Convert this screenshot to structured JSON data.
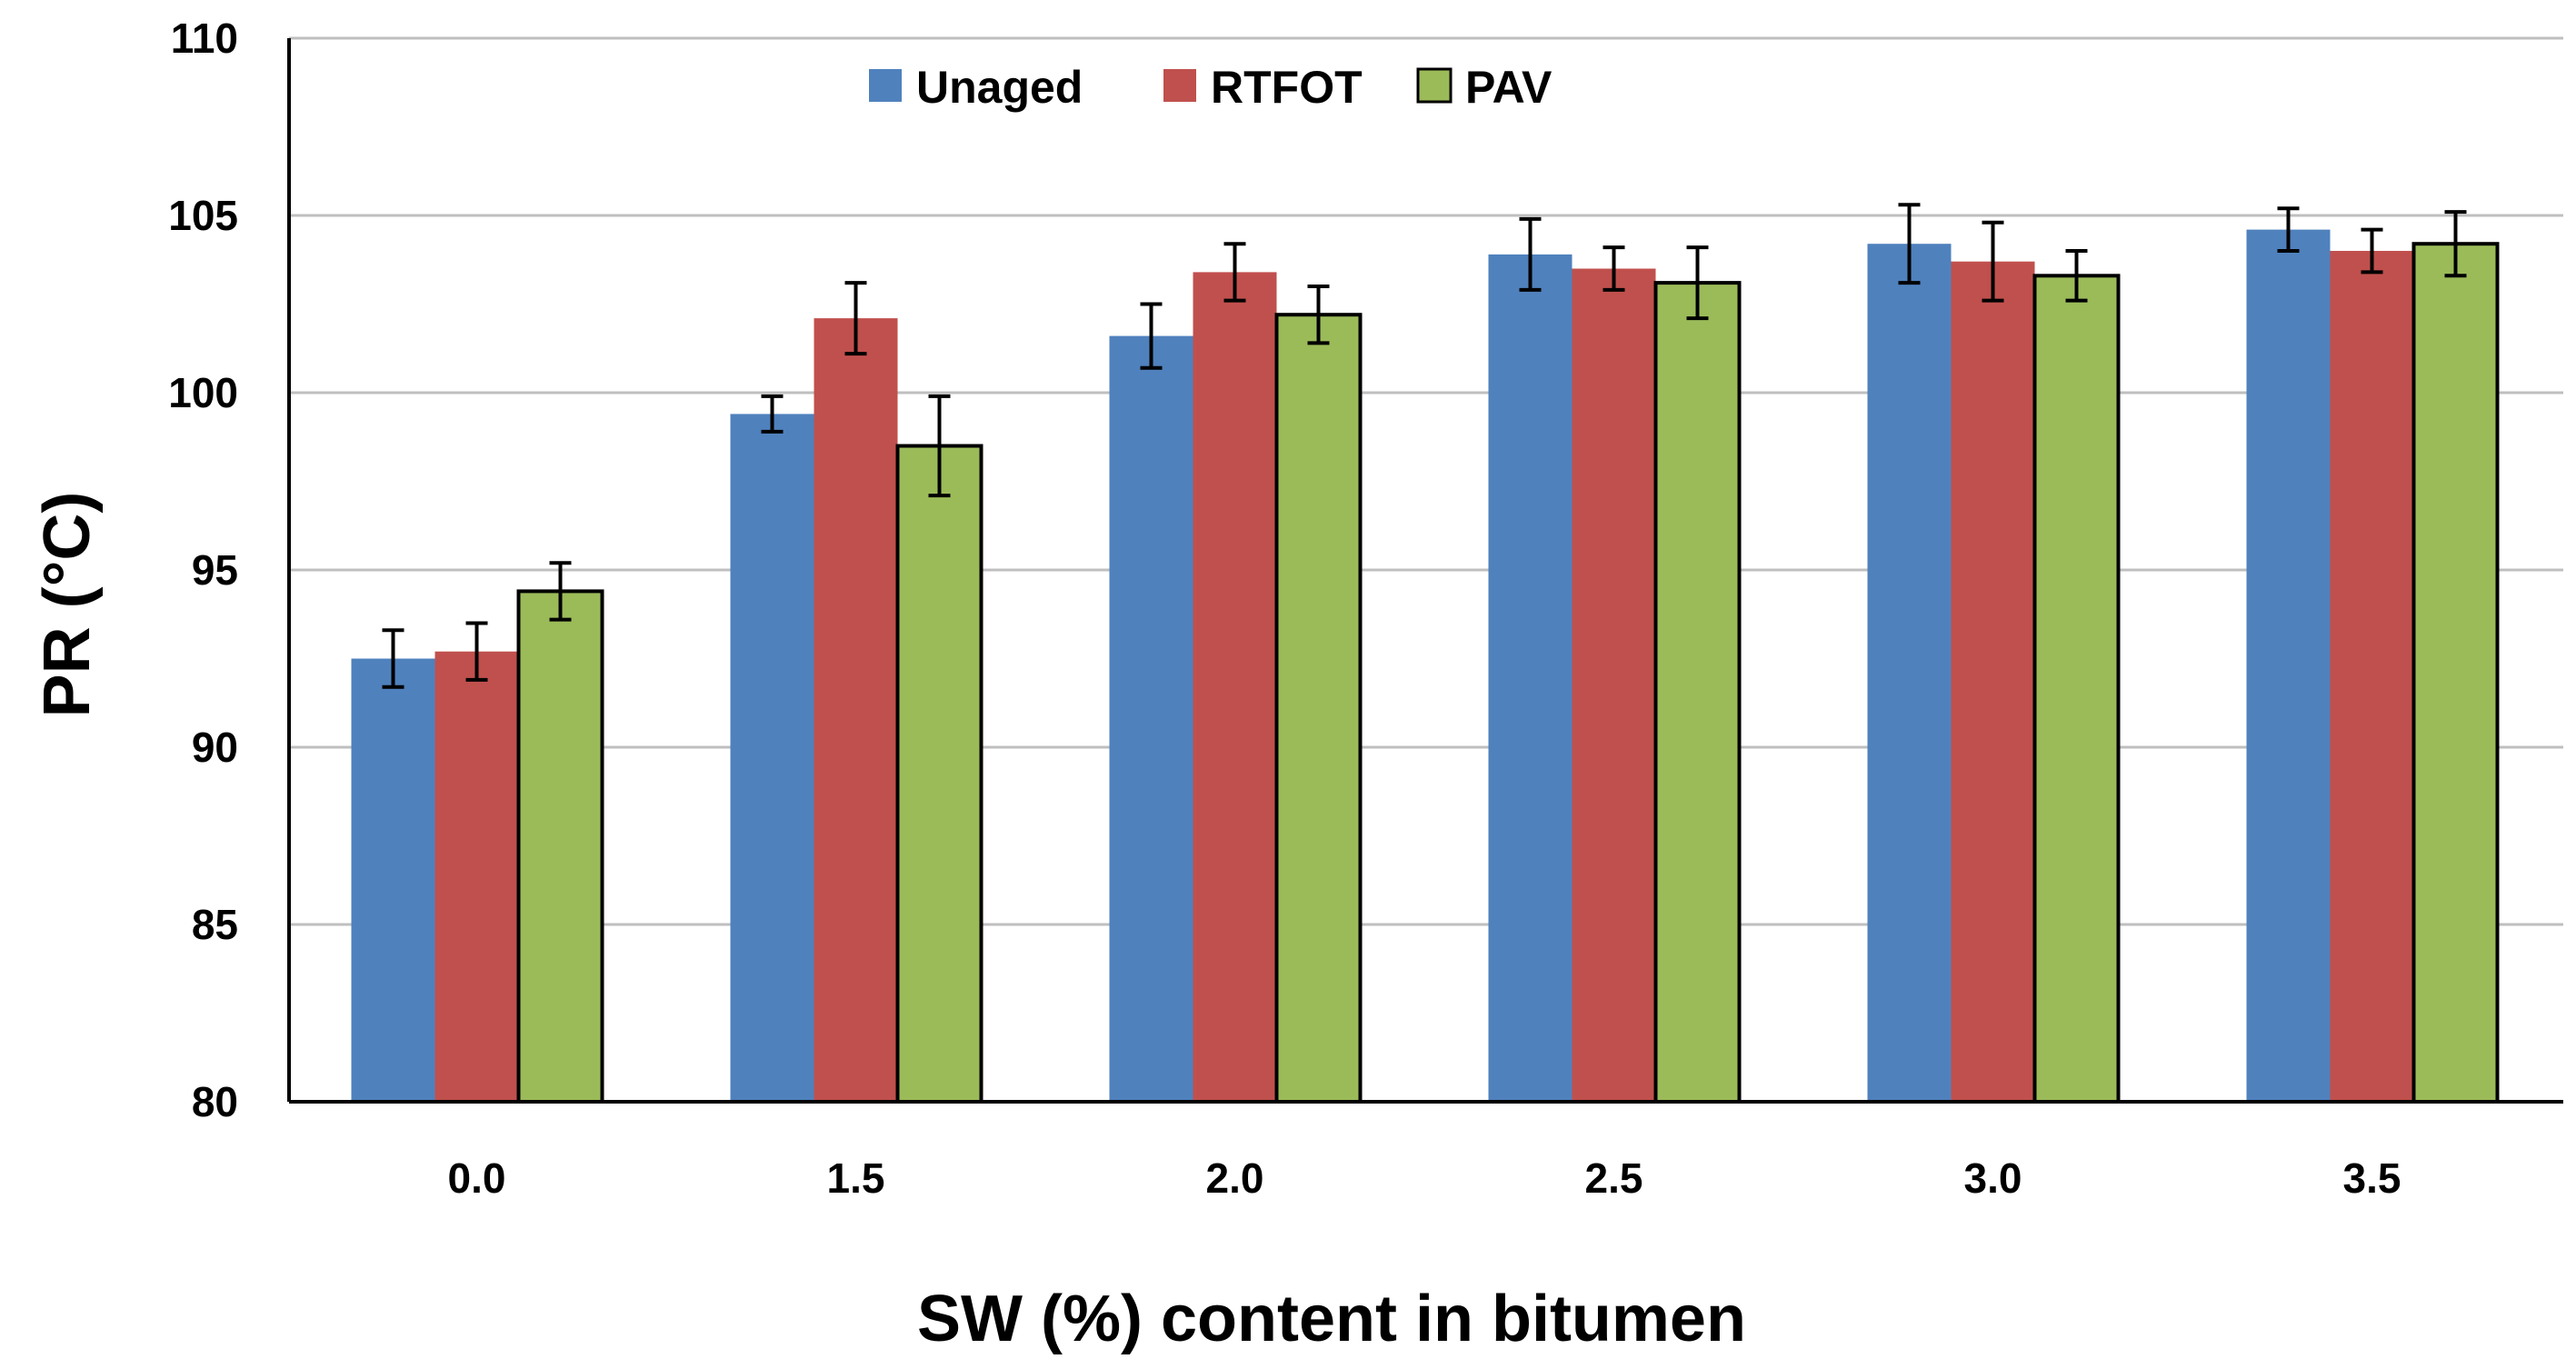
{
  "chart_data": {
    "type": "bar",
    "title": "",
    "xlabel": "SW (%) content in bitumen",
    "ylabel": "PR (°C)",
    "ylim": [
      80,
      110
    ],
    "yticks": [
      "80",
      "85",
      "90",
      "95",
      "100",
      "105",
      "110"
    ],
    "grid": true,
    "legend_position": "top-center",
    "categories": [
      "0.0",
      "1.5",
      "2.0",
      "2.5",
      "3.0",
      "3.5"
    ],
    "series": [
      {
        "name": "Unaged",
        "color": "#4f81bd",
        "values": [
          92.5,
          99.4,
          101.6,
          103.9,
          104.2,
          104.6
        ],
        "errors": [
          0.8,
          0.5,
          0.9,
          1.0,
          1.1,
          0.6
        ]
      },
      {
        "name": "RTFOT",
        "color": "#c0504d",
        "values": [
          92.7,
          102.1,
          103.4,
          103.5,
          103.7,
          104.0
        ],
        "errors": [
          0.8,
          1.0,
          0.8,
          0.6,
          1.1,
          0.6
        ]
      },
      {
        "name": "PAV",
        "color": "#9bbb59",
        "values": [
          94.4,
          98.5,
          102.2,
          103.1,
          103.3,
          104.2
        ],
        "errors": [
          0.8,
          1.4,
          0.8,
          1.0,
          0.7,
          0.9
        ]
      }
    ]
  }
}
